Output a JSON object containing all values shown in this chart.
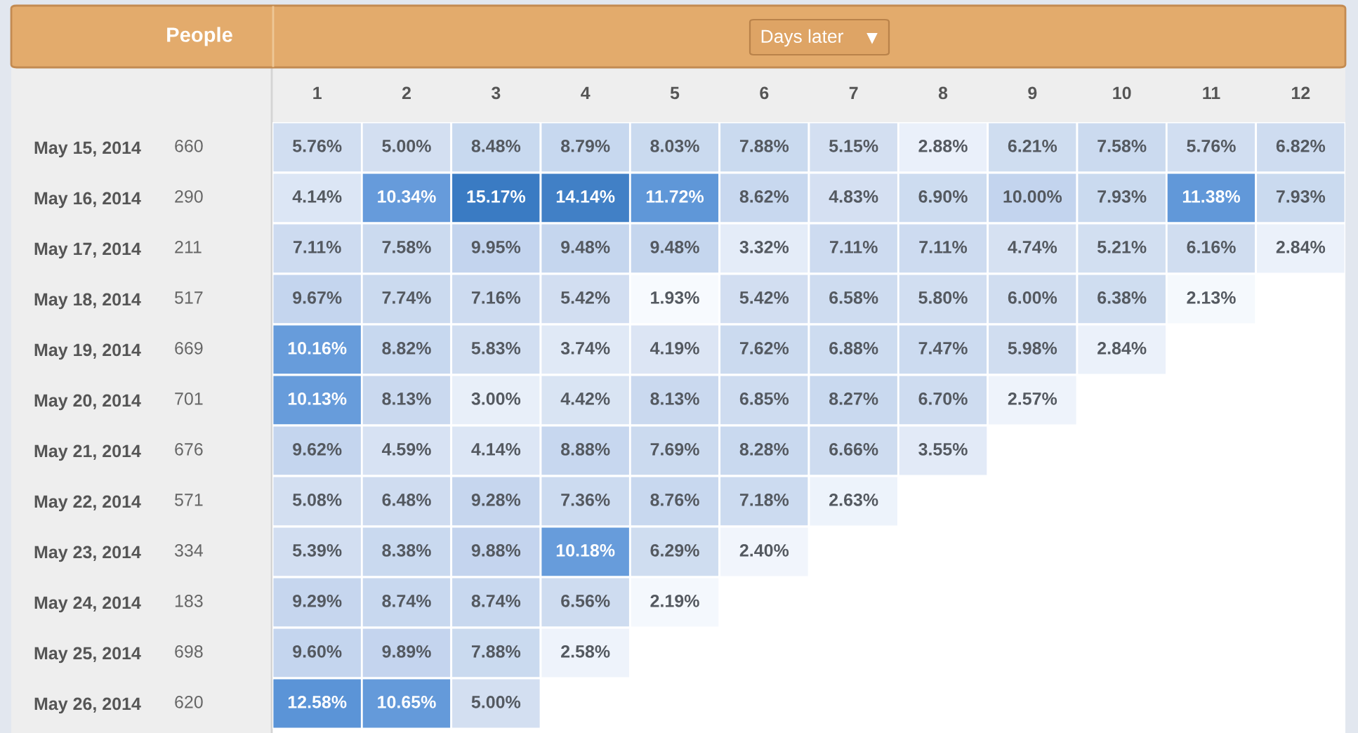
{
  "chart_data": {
    "type": "heatmap",
    "xlabel": "Days later",
    "y2label": "People",
    "categories": [
      "1",
      "2",
      "3",
      "4",
      "5",
      "6",
      "7",
      "8",
      "9",
      "10",
      "11",
      "12"
    ],
    "y_categories": [
      "May 15, 2014",
      "May 16, 2014",
      "May 17, 2014",
      "May 18, 2014",
      "May 19, 2014",
      "May 20, 2014",
      "May 21, 2014",
      "May 22, 2014",
      "May 23, 2014",
      "May 24, 2014",
      "May 25, 2014",
      "May 26, 2014"
    ],
    "y2_categories": [
      "660",
      "290",
      "211",
      "517",
      "669",
      "701",
      "676",
      "571",
      "334",
      "183",
      "698",
      "620"
    ],
    "cells": [
      [
        5.76,
        5.0,
        8.48,
        8.79,
        8.03,
        7.88,
        5.15,
        2.88,
        6.21,
        7.58,
        5.76,
        6.82
      ],
      [
        4.14,
        10.34,
        15.17,
        14.14,
        11.72,
        8.62,
        4.83,
        6.9,
        10.0,
        7.93,
        11.38,
        7.93
      ],
      [
        7.11,
        7.58,
        9.95,
        9.48,
        9.48,
        3.32,
        7.11,
        7.11,
        4.74,
        5.21,
        6.16,
        2.84
      ],
      [
        9.67,
        7.74,
        7.16,
        5.42,
        1.93,
        5.42,
        6.58,
        5.8,
        6.0,
        6.38,
        2.13,
        null
      ],
      [
        10.16,
        8.82,
        5.83,
        3.74,
        4.19,
        7.62,
        6.88,
        7.47,
        5.98,
        2.84,
        null,
        null
      ],
      [
        10.13,
        8.13,
        3.0,
        4.42,
        8.13,
        6.85,
        8.27,
        6.7,
        2.57,
        null,
        null,
        null
      ],
      [
        9.62,
        4.59,
        4.14,
        8.88,
        7.69,
        8.28,
        6.66,
        3.55,
        null,
        null,
        null,
        null
      ],
      [
        5.08,
        6.48,
        9.28,
        7.36,
        8.76,
        7.18,
        2.63,
        null,
        null,
        null,
        null,
        null
      ],
      [
        5.39,
        8.38,
        9.88,
        10.18,
        6.29,
        2.4,
        null,
        null,
        null,
        null,
        null,
        null
      ],
      [
        9.29,
        8.74,
        8.74,
        6.56,
        2.19,
        null,
        null,
        null,
        null,
        null,
        null,
        null
      ],
      [
        9.6,
        9.89,
        7.88,
        2.58,
        null,
        null,
        null,
        null,
        null,
        null,
        null,
        null
      ],
      [
        12.58,
        10.65,
        5.0,
        null,
        null,
        null,
        null,
        null,
        null,
        null,
        null,
        null
      ]
    ],
    "cell_labels": [
      [
        "5.76%",
        "5.00%",
        "8.48%",
        "8.79%",
        "8.03%",
        "7.88%",
        "5.15%",
        "2.88%",
        "6.21%",
        "7.58%",
        "5.76%",
        "6.82%"
      ],
      [
        "4.14%",
        "10.34%",
        "15.17%",
        "14.14%",
        "11.72%",
        "8.62%",
        "4.83%",
        "6.90%",
        "10.00%",
        "7.93%",
        "11.38%",
        "7.93%"
      ],
      [
        "7.11%",
        "7.58%",
        "9.95%",
        "9.48%",
        "9.48%",
        "3.32%",
        "7.11%",
        "7.11%",
        "4.74%",
        "5.21%",
        "6.16%",
        "2.84%"
      ],
      [
        "9.67%",
        "7.74%",
        "7.16%",
        "5.42%",
        "1.93%",
        "5.42%",
        "6.58%",
        "5.80%",
        "6.00%",
        "6.38%",
        "2.13%",
        null
      ],
      [
        "10.16%",
        "8.82%",
        "5.83%",
        "3.74%",
        "4.19%",
        "7.62%",
        "6.88%",
        "7.47%",
        "5.98%",
        "2.84%",
        null,
        null
      ],
      [
        "10.13%",
        "8.13%",
        "3.00%",
        "4.42%",
        "8.13%",
        "6.85%",
        "8.27%",
        "6.70%",
        "2.57%",
        null,
        null,
        null
      ],
      [
        "9.62%",
        "4.59%",
        "4.14%",
        "8.88%",
        "7.69%",
        "8.28%",
        "6.66%",
        "3.55%",
        null,
        null,
        null,
        null
      ],
      [
        "5.08%",
        "6.48%",
        "9.28%",
        "7.36%",
        "8.76%",
        "7.18%",
        "2.63%",
        null,
        null,
        null,
        null,
        null
      ],
      [
        "5.39%",
        "8.38%",
        "9.88%",
        "10.18%",
        "6.29%",
        "2.40%",
        null,
        null,
        null,
        null,
        null,
        null
      ],
      [
        "9.29%",
        "8.74%",
        "8.74%",
        "6.56%",
        "2.19%",
        null,
        null,
        null,
        null,
        null,
        null,
        null
      ],
      [
        "9.60%",
        "9.89%",
        "7.88%",
        "2.58%",
        null,
        null,
        null,
        null,
        null,
        null,
        null,
        null
      ],
      [
        "12.58%",
        "10.65%",
        "5.00%",
        null,
        null,
        null,
        null,
        null,
        null,
        null,
        null,
        null
      ]
    ]
  }
}
